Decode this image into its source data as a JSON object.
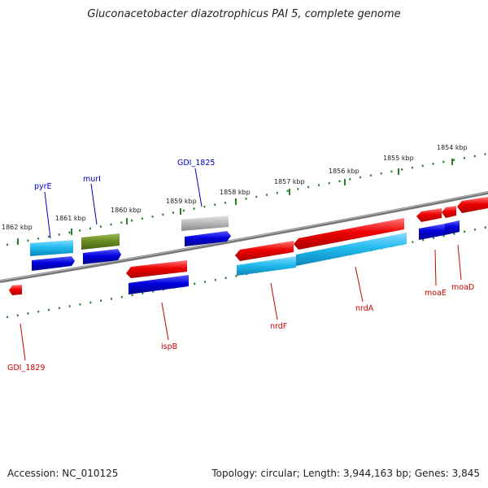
{
  "title": "Gluconacetobacter diazotrophicus PAI 5, complete genome",
  "footer": {
    "accession": "Accession: NC_010125",
    "topology": "Topology: circular; Length: 3,944,163 bp; Genes: 3,845"
  },
  "colors": {
    "backbone": "#888888",
    "ticks": "#2e7d2e",
    "forward_label": "#0000cc",
    "reverse_label": "#cc0000",
    "red": "#ee0000",
    "blue": "#0000dd",
    "cyan": "#22bbee",
    "olive": "#6b8e23",
    "gray": "#bbbbbb"
  },
  "kbp_labels": [
    "1862 kbp",
    "1861 kbp",
    "1860 kbp",
    "1859 kbp",
    "1858 kbp",
    "1857 kbp",
    "1856 kbp",
    "1855 kbp",
    "1854 kbp"
  ],
  "gene_labels": {
    "pyrE": "pyrE",
    "murI": "murI",
    "gdi1825": "GDI_1825",
    "gdi1829": "GDI_1829",
    "ispB": "ispB",
    "nrdF": "nrdF",
    "nrdA": "nrdA",
    "moaE": "moaE",
    "moaD": "moaD"
  }
}
